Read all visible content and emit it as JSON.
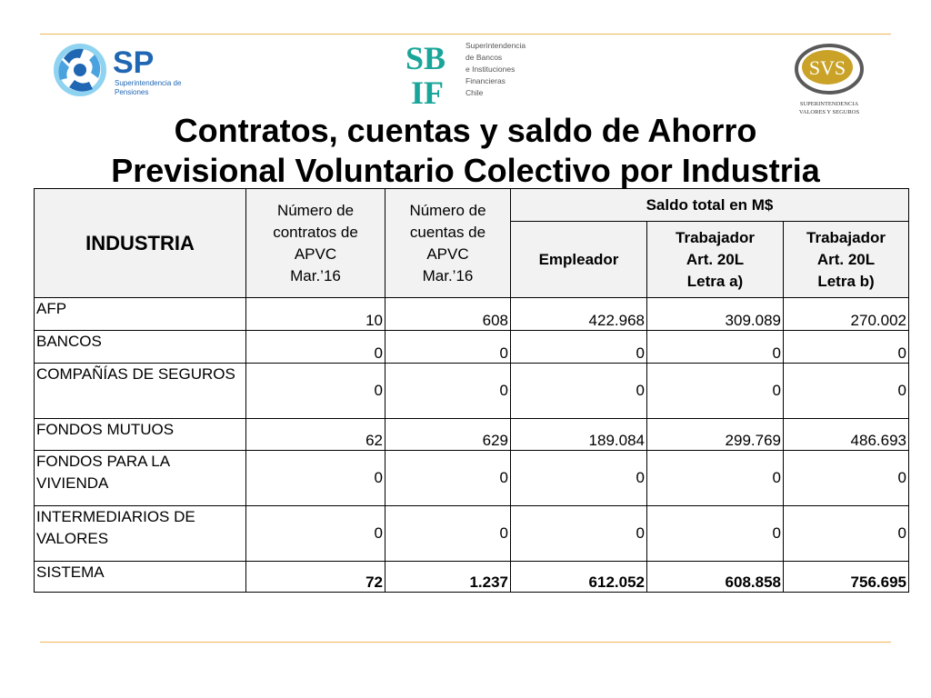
{
  "logos": {
    "sp": {
      "wordmark": "SP",
      "name": "Superintendencia de Pensiones",
      "line1": "Superintendencia de",
      "line2": "Pensiones"
    },
    "sbif": {
      "wordmark_top": "SB",
      "wordmark_bottom": "IF",
      "line1": "Superintendencia",
      "line2": "de Bancos",
      "line3": "e Instituciones",
      "line4": "Financieras",
      "line5": "Chile"
    },
    "svs": {
      "wordmark": "SVS",
      "line1": "SUPERINTENDENCIA",
      "line2": "VALORES Y SEGUROS"
    }
  },
  "title": {
    "line1": "Contratos, cuentas y saldo de Ahorro",
    "line2": "Previsional Voluntario Colectivo por Industria"
  },
  "table": {
    "headers": {
      "industria": "INDUSTRIA",
      "contratos": {
        "line1": "Número de",
        "line2": "contratos de",
        "line3": "APVC",
        "line4": "Mar.’16"
      },
      "cuentas": {
        "line1": "Número de",
        "line2": "cuentas de",
        "line3": "APVC",
        "line4": "Mar.’16"
      },
      "saldo_total": "Saldo total en M$",
      "empleador": "Empleador",
      "trab_a": {
        "line1": "Trabajador",
        "line2": "Art. 20L",
        "line3": "Letra a)"
      },
      "trab_b": {
        "line1": "Trabajador",
        "line2": "Art. 20L",
        "line3": "Letra b)"
      }
    },
    "rows": [
      {
        "industria": "AFP",
        "contratos": "10",
        "cuentas": "608",
        "empleador": "422.968",
        "trab_a": "309.089",
        "trab_b": "270.002"
      },
      {
        "industria": "BANCOS",
        "contratos": "0",
        "cuentas": "0",
        "empleador": "0",
        "trab_a": "0",
        "trab_b": "0"
      },
      {
        "industria": "COMPAÑÍAS DE SEGUROS",
        "contratos": "0",
        "cuentas": "0",
        "empleador": "0",
        "trab_a": "0",
        "trab_b": "0"
      },
      {
        "industria": "FONDOS MUTUOS",
        "contratos": "62",
        "cuentas": "629",
        "empleador": "189.084",
        "trab_a": "299.769",
        "trab_b": "486.693"
      },
      {
        "industria": "FONDOS PARA LA VIVIENDA",
        "contratos": "0",
        "cuentas": "0",
        "empleador": "0",
        "trab_a": "0",
        "trab_b": "0"
      },
      {
        "industria": "INTERMEDIARIOS DE VALORES",
        "contratos": "0",
        "cuentas": "0",
        "empleador": "0",
        "trab_a": "0",
        "trab_b": "0"
      },
      {
        "industria": "SISTEMA",
        "contratos": "72",
        "cuentas": "1.237",
        "empleador": "612.052",
        "trab_a": "608.858",
        "trab_b": "756.695"
      }
    ]
  }
}
